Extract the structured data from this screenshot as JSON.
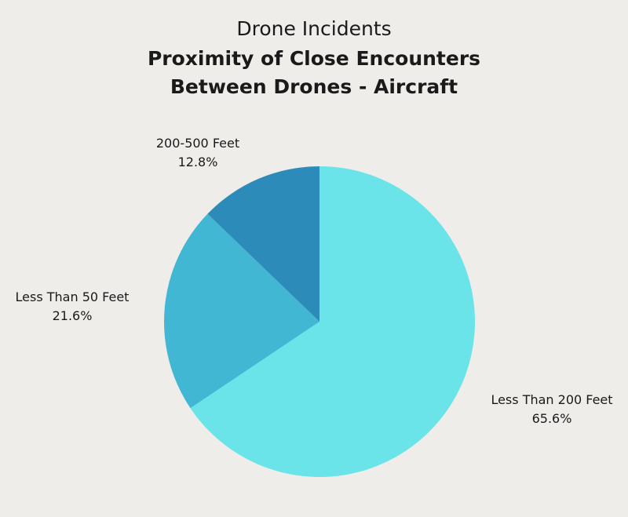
{
  "chart_data": {
    "type": "pie",
    "title": "Drone Incidents",
    "subtitle": [
      "Proximity of Close Encounters",
      "Between Drones - Aircraft"
    ],
    "categories": [
      "Less Than 200 Feet",
      "Less Than 50 Feet",
      "200-500 Feet"
    ],
    "values": [
      65.6,
      21.6,
      12.8
    ],
    "value_labels": [
      "65.6%",
      "21.6%",
      "12.8%"
    ],
    "colors": [
      "#6ae4e8",
      "#42b7d3",
      "#2d8bb9"
    ],
    "start_angle": "top",
    "direction": "clockwise",
    "legend": "none"
  }
}
